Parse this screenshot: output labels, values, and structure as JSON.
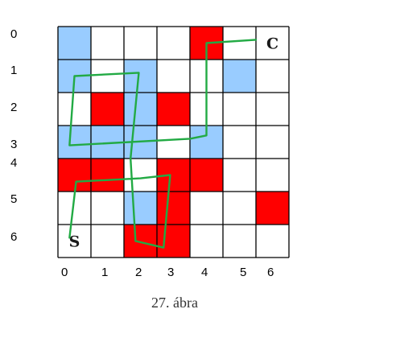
{
  "caption": "27. ábra",
  "grid": {
    "rows": 7,
    "cols": 7,
    "row_labels": [
      "0",
      "1",
      "2",
      "3",
      "4",
      "5",
      "6"
    ],
    "col_labels": [
      "0",
      "1",
      "2",
      "3",
      "4",
      "5",
      "6"
    ],
    "colors": {
      "blue": "#99ccff",
      "red": "#ff0000",
      "white": "#ffffff",
      "grid_line": "#000000",
      "path": "#22aa44"
    },
    "cells": [
      [
        "blue",
        "white",
        "white",
        "white",
        "red",
        "white",
        "white"
      ],
      [
        "blue",
        "white",
        "blue",
        "white",
        "white",
        "blue",
        "white"
      ],
      [
        "white",
        "red",
        "blue",
        "red",
        "white",
        "white",
        "white"
      ],
      [
        "blue",
        "blue",
        "blue",
        "white",
        "blue",
        "white",
        "white"
      ],
      [
        "red",
        "red",
        "white",
        "red",
        "red",
        "white",
        "white"
      ],
      [
        "white",
        "white",
        "blue",
        "red",
        "white",
        "white",
        "red"
      ],
      [
        "white",
        "white",
        "red",
        "red",
        "white",
        "white",
        "white"
      ]
    ],
    "labels": [
      {
        "text": "C",
        "row": 0,
        "col": 6
      },
      {
        "text": "S",
        "row": 6,
        "col": 0
      }
    ]
  },
  "path": {
    "description_points": [
      [
        0.35,
        6.4
      ],
      [
        0.55,
        4.7
      ],
      [
        2.5,
        4.6
      ],
      [
        3.4,
        4.5
      ],
      [
        3.2,
        6.7
      ],
      [
        2.35,
        6.5
      ],
      [
        2.2,
        4.0
      ],
      [
        2.45,
        1.4
      ],
      [
        0.5,
        1.5
      ],
      [
        0.35,
        3.6
      ],
      [
        4.0,
        3.4
      ],
      [
        4.5,
        3.3
      ],
      [
        4.5,
        0.5
      ],
      [
        6.0,
        0.4
      ]
    ]
  }
}
